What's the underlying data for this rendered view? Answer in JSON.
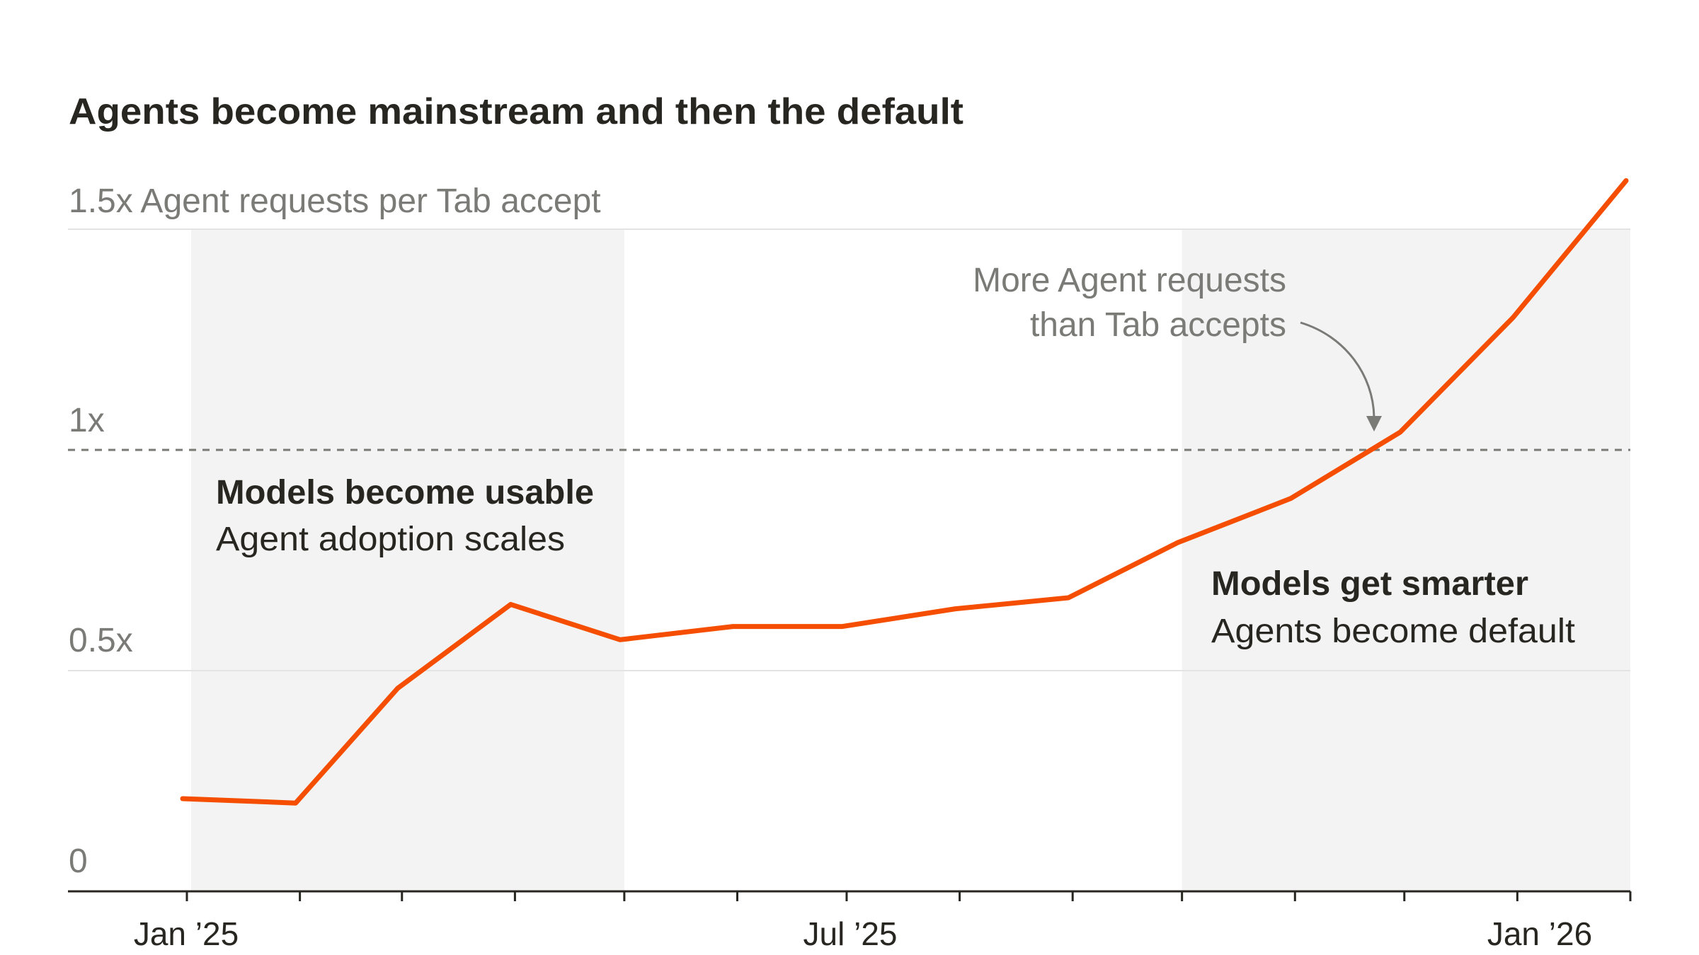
{
  "chart_data": {
    "type": "line",
    "title": "Agents become mainstream and then the default",
    "ylabel": "Agent requests per Tab accept",
    "x": [
      "2025-01",
      "2025-02",
      "2025-03",
      "2025-04",
      "2025-05",
      "2025-06",
      "2025-07",
      "2025-08",
      "2025-09",
      "2025-10",
      "2025-11",
      "2025-12",
      "2026-01",
      "2026-02"
    ],
    "series": [
      {
        "values": [
          0.21,
          0.2,
          0.46,
          0.65,
          0.57,
          0.6,
          0.6,
          0.64,
          0.665,
          0.79,
          0.89,
          1.04,
          1.3,
          1.61
        ],
        "color": "#f54e00"
      }
    ],
    "ylim": [
      0,
      1.5
    ],
    "yticks": [
      {
        "value": 0,
        "label": "0"
      },
      {
        "value": 0.5,
        "label": "0.5x"
      },
      {
        "value": 1,
        "label": "1x"
      },
      {
        "value": 1.5,
        "label": "1.5x"
      }
    ],
    "xtick_labels": [
      {
        "x": "2025-01",
        "label": "Jan ’25"
      },
      {
        "x": "2025-07",
        "label": "Jul ’25"
      },
      {
        "x": "2026-01",
        "label": "Jan ’26"
      }
    ],
    "reference_line": {
      "value": 1,
      "style": "dashed"
    },
    "shaded_periods": [
      {
        "from": "2025-01",
        "to": "2025-05",
        "heading": "Models become usable",
        "text": "Agent adoption scales"
      },
      {
        "from": "2025-10",
        "to": "2026-02",
        "heading": "Models get smarter",
        "text": "Agents become default"
      }
    ],
    "annotation": {
      "lines": [
        "More Agent requests",
        "than Tab accepts"
      ],
      "points_to": "2025-12"
    },
    "grid": true,
    "colors": {
      "line": "#f54e00",
      "shade": "#f3f3f3",
      "grid": "#e3e3e3",
      "muted_text": "#7a7a76",
      "text": "#272620"
    }
  }
}
